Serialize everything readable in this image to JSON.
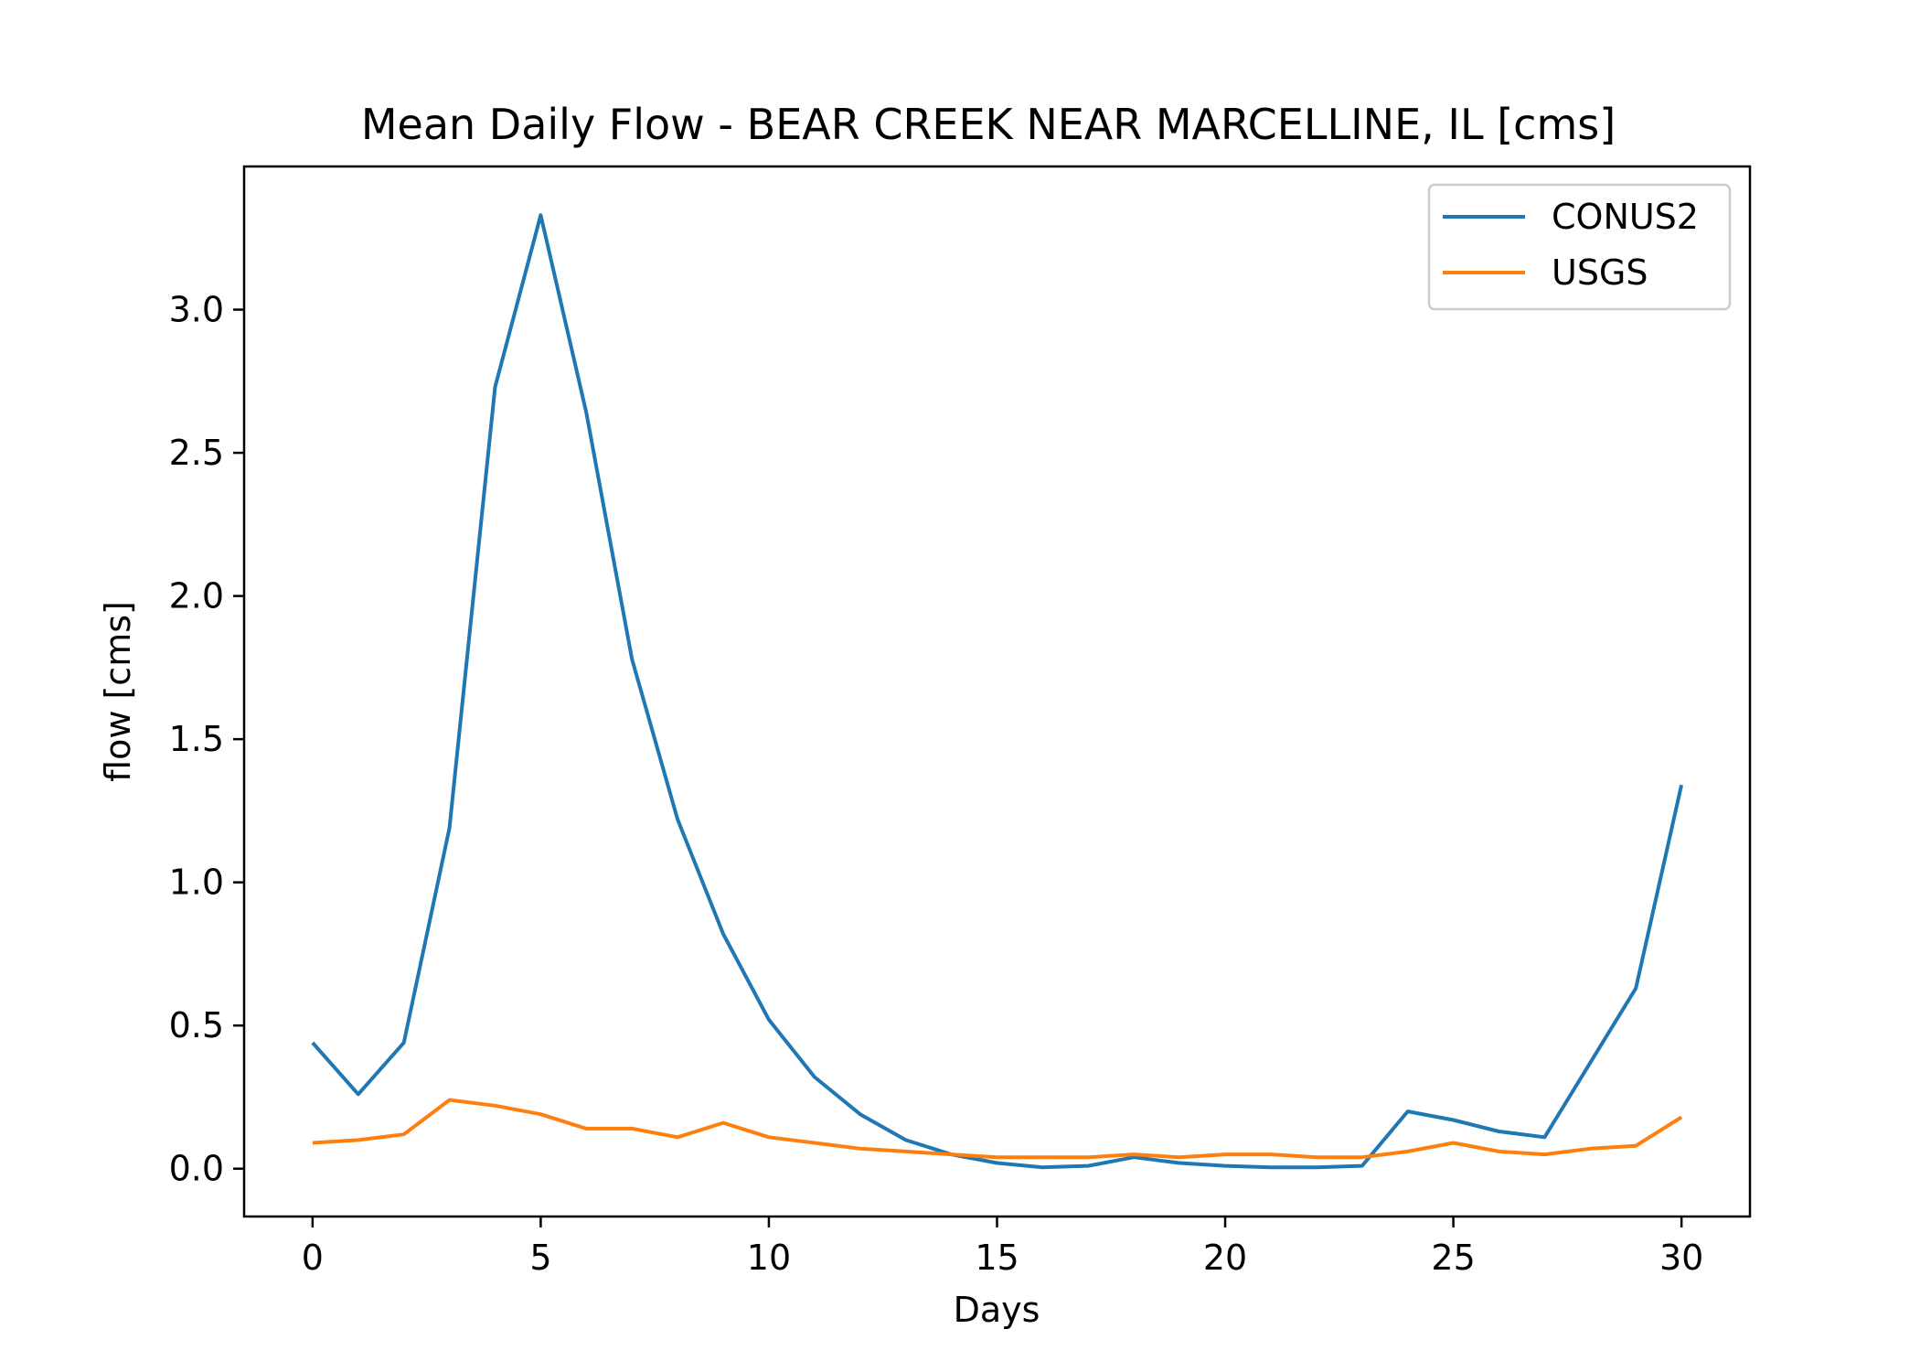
{
  "chart_data": {
    "type": "line",
    "title": "Mean Daily Flow - BEAR CREEK NEAR MARCELLINE, IL [cms]",
    "xlabel": "Days",
    "ylabel": "flow [cms]",
    "xlim": [
      -1.5,
      31.5
    ],
    "ylim": [
      -0.167,
      3.5
    ],
    "xticks": [
      0,
      5,
      10,
      15,
      20,
      25,
      30
    ],
    "xtick_labels": [
      "0",
      "5",
      "10",
      "15",
      "20",
      "25",
      "30"
    ],
    "yticks": [
      0.0,
      0.5,
      1.0,
      1.5,
      2.0,
      2.5,
      3.0
    ],
    "ytick_labels": [
      "0.0",
      "0.5",
      "1.0",
      "1.5",
      "2.0",
      "2.5",
      "3.0"
    ],
    "grid": false,
    "legend_position": "top-right",
    "x": [
      0,
      1,
      2,
      3,
      4,
      5,
      6,
      7,
      8,
      9,
      10,
      11,
      12,
      13,
      14,
      15,
      16,
      17,
      18,
      19,
      20,
      21,
      22,
      23,
      24,
      25,
      26,
      27,
      28,
      29,
      30
    ],
    "series": [
      {
        "name": "CONUS2",
        "color": "#1f77b4",
        "values": [
          0.44,
          0.26,
          0.44,
          1.19,
          2.73,
          3.33,
          2.64,
          1.78,
          1.22,
          0.82,
          0.52,
          0.32,
          0.19,
          0.1,
          0.05,
          0.02,
          0.005,
          0.01,
          0.04,
          0.02,
          0.01,
          0.005,
          0.005,
          0.01,
          0.2,
          0.17,
          0.13,
          0.11,
          0.37,
          0.63,
          1.34
        ]
      },
      {
        "name": "USGS",
        "color": "#ff7f0e",
        "values": [
          0.09,
          0.1,
          0.12,
          0.24,
          0.22,
          0.19,
          0.14,
          0.14,
          0.11,
          0.16,
          0.11,
          0.09,
          0.07,
          0.06,
          0.05,
          0.04,
          0.04,
          0.04,
          0.05,
          0.04,
          0.05,
          0.05,
          0.04,
          0.04,
          0.06,
          0.09,
          0.06,
          0.05,
          0.07,
          0.08,
          0.18
        ]
      }
    ]
  }
}
